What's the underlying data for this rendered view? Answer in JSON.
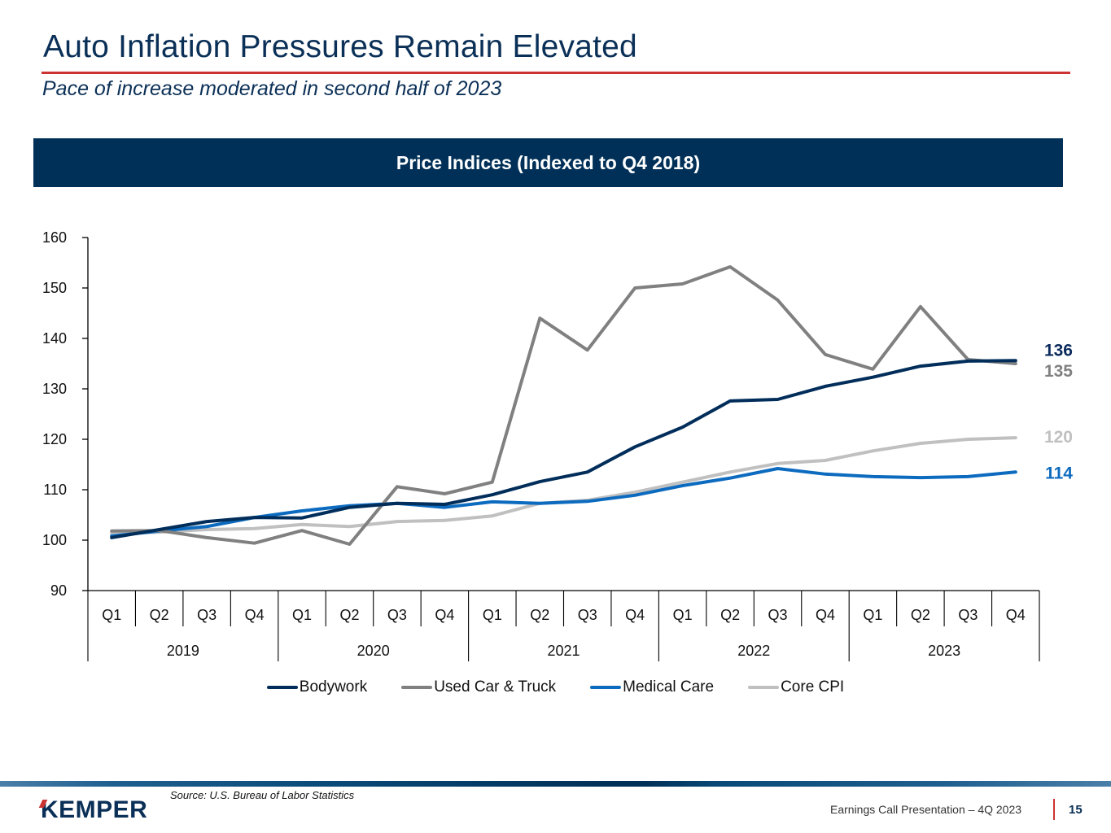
{
  "slide": {
    "title": "Auto Inflation Pressures Remain Elevated",
    "subtitle": "Pace of increase moderated in second half of 2023",
    "banner": "Price Indices (Indexed to Q4 2018)",
    "source": "Source: U.S. Bureau of Labor Statistics",
    "logo": "KEMPER",
    "footer_text": "Earnings Call Presentation – 4Q 2023",
    "page_number": "15",
    "colors": {
      "brand_navy": "#003057",
      "accent_red": "#cc3333"
    }
  },
  "chart_data": {
    "type": "line",
    "title": "Price Indices (Indexed to Q4 2018)",
    "xlabel": "",
    "ylabel": "",
    "ylim": [
      90,
      160
    ],
    "yticks": [
      90,
      100,
      110,
      120,
      130,
      140,
      150,
      160
    ],
    "grid": false,
    "legend_position": "bottom",
    "categories": [
      "Q1",
      "Q2",
      "Q3",
      "Q4",
      "Q1",
      "Q2",
      "Q3",
      "Q4",
      "Q1",
      "Q2",
      "Q3",
      "Q4",
      "Q1",
      "Q2",
      "Q3",
      "Q4",
      "Q1",
      "Q2",
      "Q3",
      "Q4"
    ],
    "category_groups": [
      {
        "label": "2019",
        "count": 4
      },
      {
        "label": "2020",
        "count": 4
      },
      {
        "label": "2021",
        "count": 4
      },
      {
        "label": "2022",
        "count": 4
      },
      {
        "label": "2023",
        "count": 4
      }
    ],
    "series": [
      {
        "name": "Bodywork",
        "color": "#002d5a",
        "end_label": "136",
        "values": [
          100.5,
          102.1,
          103.7,
          104.5,
          104.4,
          106.5,
          107.3,
          107.1,
          109.0,
          111.6,
          113.5,
          118.5,
          122.4,
          127.6,
          127.9,
          130.5,
          132.3,
          134.5,
          135.5,
          135.6
        ]
      },
      {
        "name": "Used Car & Truck",
        "color": "#808080",
        "end_label": "135",
        "values": [
          101.8,
          101.9,
          100.5,
          99.4,
          101.9,
          99.2,
          110.6,
          109.2,
          111.5,
          144.0,
          137.7,
          150.0,
          150.8,
          154.2,
          147.6,
          136.8,
          133.9,
          146.3,
          135.8,
          135.0
        ]
      },
      {
        "name": "Medical Care",
        "color": "#0d6bbf",
        "end_label": "114",
        "values": [
          100.8,
          101.8,
          102.7,
          104.5,
          105.8,
          106.8,
          107.3,
          106.5,
          107.6,
          107.3,
          107.7,
          108.9,
          110.8,
          112.3,
          114.2,
          113.1,
          112.6,
          112.4,
          112.6,
          113.5
        ]
      },
      {
        "name": "Core CPI",
        "color": "#c0c0c0",
        "end_label": "120",
        "values": [
          101.3,
          101.6,
          102.1,
          102.3,
          103.1,
          102.7,
          103.7,
          103.9,
          104.8,
          107.3,
          107.9,
          109.5,
          111.5,
          113.5,
          115.2,
          115.8,
          117.7,
          119.2,
          120.0,
          120.3
        ]
      }
    ]
  }
}
